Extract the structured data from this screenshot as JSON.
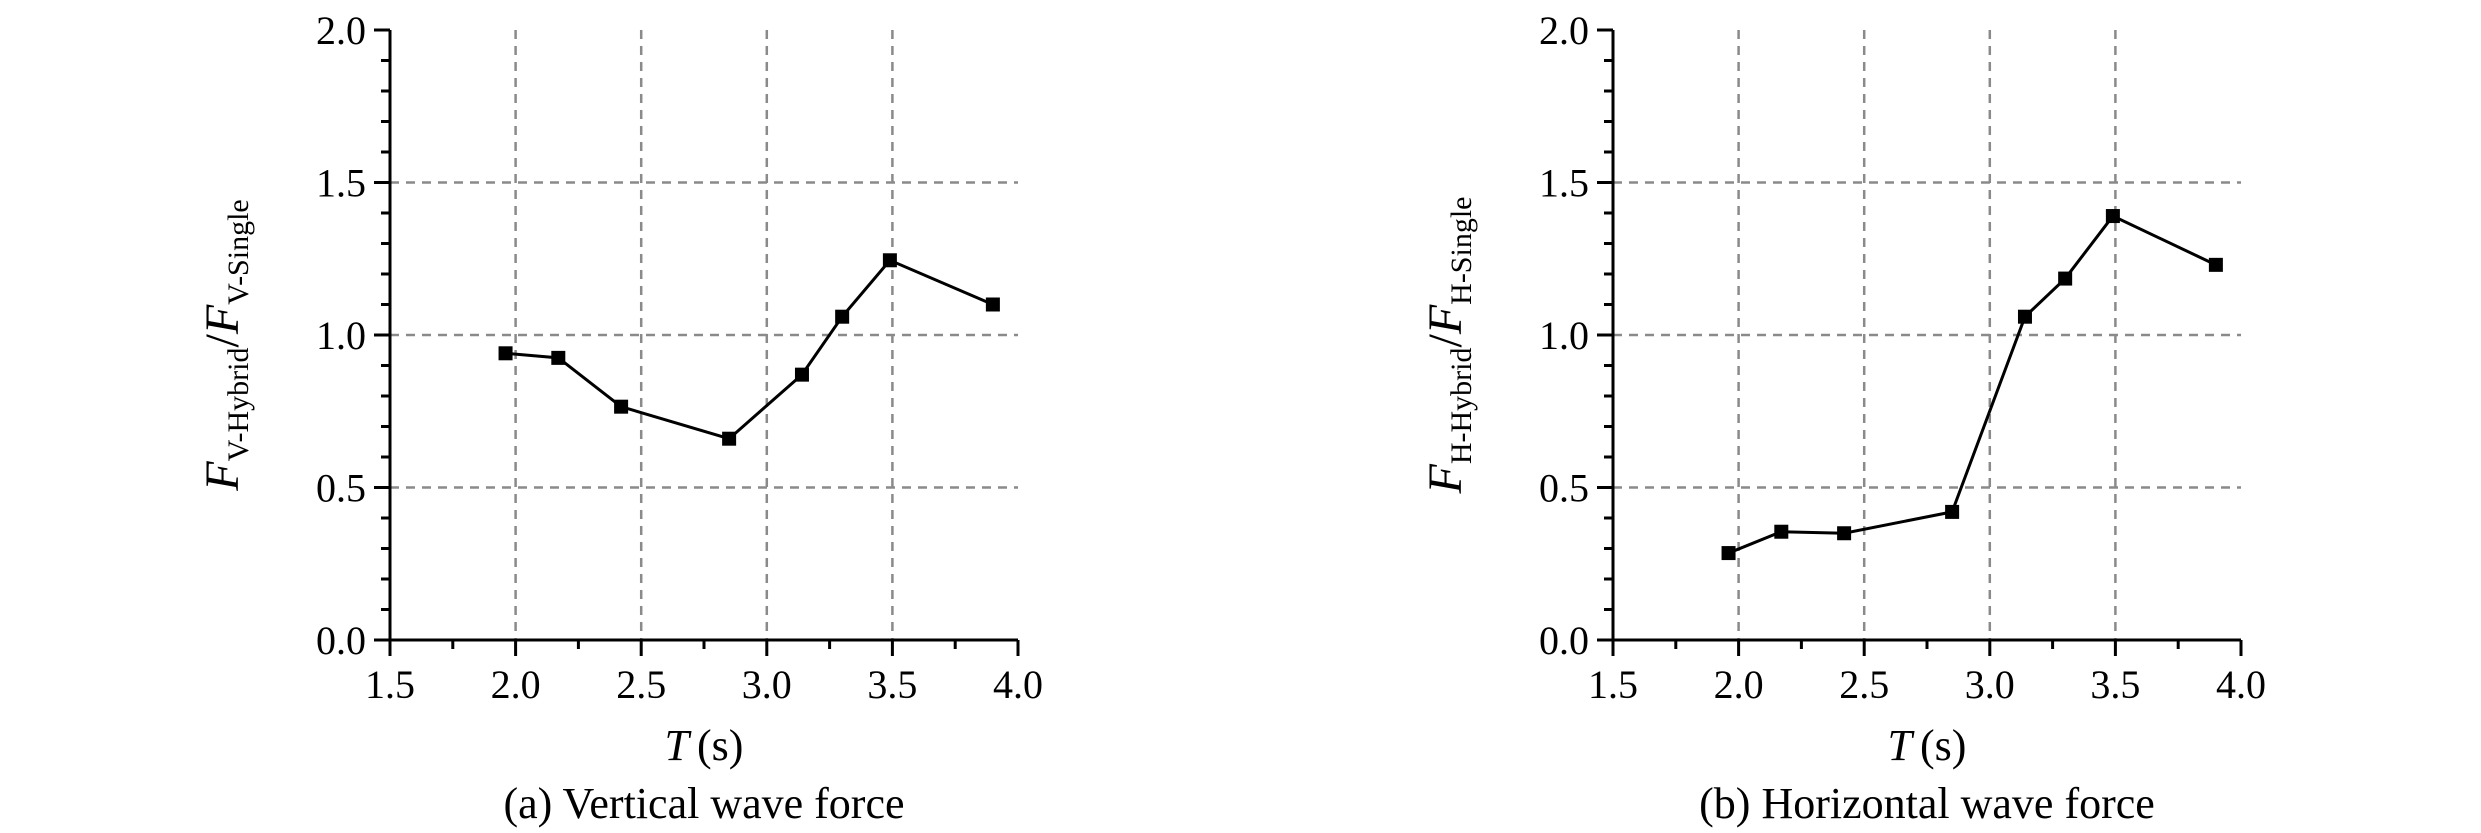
{
  "chart_data": [
    {
      "type": "line",
      "caption": "(a) Vertical wave force",
      "xlabel": {
        "var": "T",
        "unit": "(s)"
      },
      "ylabel": {
        "num_var": "F",
        "num_sub": "V-Hybrid",
        "sep": "/",
        "den_var": "F",
        "den_sub": "V-Single"
      },
      "xlim": [
        1.5,
        4.0
      ],
      "ylim": [
        0.0,
        2.0
      ],
      "xticks": [
        "1.5",
        "2.0",
        "2.5",
        "3.0",
        "3.5",
        "4.0"
      ],
      "yticks": [
        "0.0",
        "0.5",
        "1.0",
        "1.5",
        "2.0"
      ],
      "grid": true,
      "marker": "square",
      "series": [
        {
          "x": [
            1.96,
            2.17,
            2.42,
            2.85,
            3.14,
            3.3,
            3.49,
            3.9
          ],
          "y": [
            0.94,
            0.925,
            0.765,
            0.66,
            0.87,
            1.06,
            1.245,
            1.1
          ]
        }
      ]
    },
    {
      "type": "line",
      "caption": "(b) Horizontal wave force",
      "xlabel": {
        "var": "T",
        "unit": "(s)"
      },
      "ylabel": {
        "num_var": "F",
        "num_sub": "H-Hybrid",
        "sep": "/",
        "den_var": "F",
        "den_sub": "H-Single"
      },
      "xlim": [
        1.5,
        4.0
      ],
      "ylim": [
        0.0,
        2.0
      ],
      "xticks": [
        "1.5",
        "2.0",
        "2.5",
        "3.0",
        "3.5",
        "4.0"
      ],
      "yticks": [
        "0.0",
        "0.5",
        "1.0",
        "1.5",
        "2.0"
      ],
      "grid": true,
      "marker": "square",
      "series": [
        {
          "x": [
            1.96,
            2.17,
            2.42,
            2.85,
            3.14,
            3.3,
            3.49,
            3.9
          ],
          "y": [
            0.285,
            0.355,
            0.35,
            0.42,
            1.06,
            1.185,
            1.39,
            1.23
          ]
        }
      ]
    }
  ]
}
